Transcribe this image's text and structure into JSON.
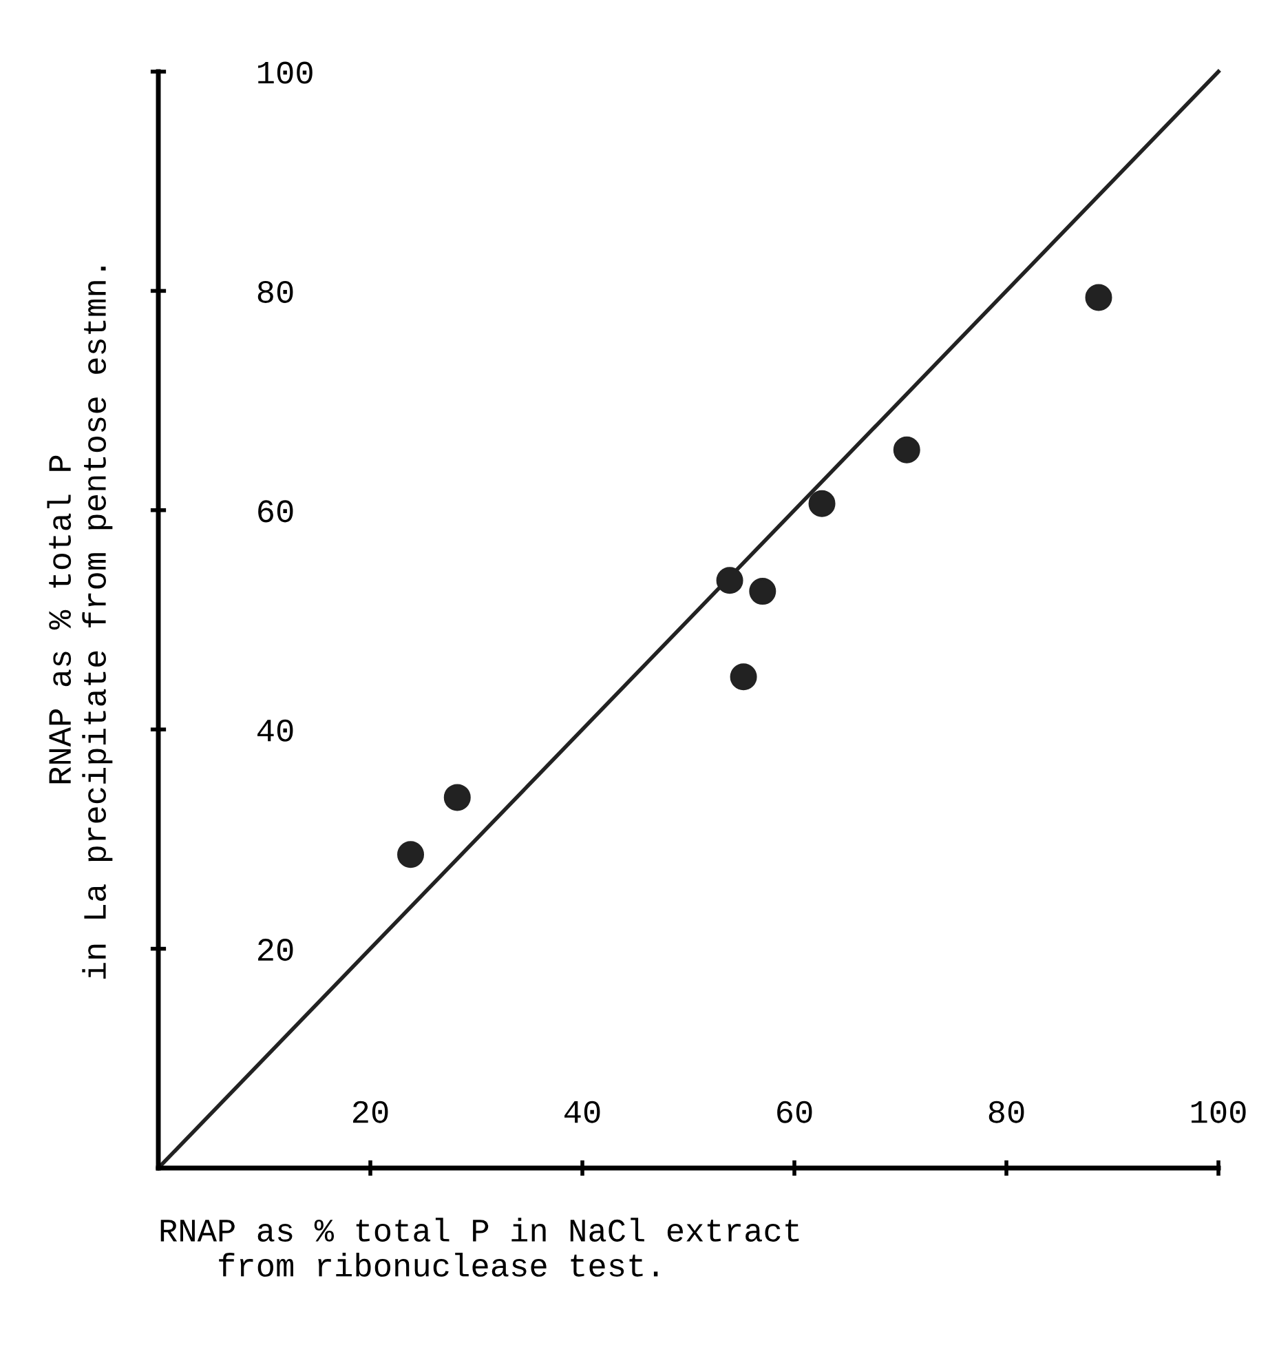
{
  "chart_data": {
    "type": "scatter",
    "xlabel": "RNAP as % total P in NaCl extract\n   from ribonuclease test.",
    "ylabel": "RNAP as % total P\nin La precipitate from pentose estmn.",
    "xlim": [
      0,
      100
    ],
    "ylim": [
      0,
      100
    ],
    "xticks": [
      20,
      40,
      60,
      80,
      100
    ],
    "yticks": [
      20,
      40,
      60,
      80,
      100
    ],
    "grid": false,
    "legend": false,
    "series": [
      {
        "marker": "circle",
        "color": "#222222",
        "x": [
          23.8,
          28.2,
          53.9,
          57.0,
          55.2,
          62.6,
          70.6,
          88.7
        ],
        "values": [
          28.6,
          33.8,
          53.6,
          52.6,
          44.8,
          60.6,
          65.5,
          79.4
        ]
      },
      {
        "type": "line",
        "marker": "none",
        "color": "#222222",
        "x": [
          0,
          100
        ],
        "values": [
          0,
          100
        ]
      }
    ]
  }
}
